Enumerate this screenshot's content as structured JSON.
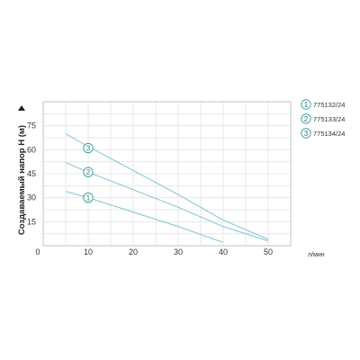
{
  "chart_data": {
    "type": "line",
    "ylabel": "Создаваемый напор H (м)",
    "xunit": "л/мин",
    "xlim": [
      0,
      55
    ],
    "ylim": [
      0,
      90
    ],
    "xticks": [
      0,
      10,
      20,
      30,
      40,
      50
    ],
    "yticks": [
      15,
      30,
      45,
      60,
      75
    ],
    "grid": true,
    "legend_position": "right",
    "line_color": "#8cc9d4",
    "badge_color": "#3aa6a0",
    "series": [
      {
        "name": "775132/24",
        "badge": "1",
        "badge_at": [
          10,
          30
        ],
        "x": [
          5,
          10,
          20,
          30,
          40
        ],
        "y": [
          34,
          30,
          21,
          12,
          2
        ]
      },
      {
        "name": "775133/24",
        "badge": "2",
        "badge_at": [
          10,
          46
        ],
        "x": [
          5,
          10,
          20,
          30,
          40,
          50
        ],
        "y": [
          52,
          46,
          35,
          24,
          12,
          3
        ]
      },
      {
        "name": "775134/24",
        "badge": "3",
        "badge_at": [
          10,
          61
        ],
        "x": [
          5,
          10,
          20,
          30,
          40,
          50
        ],
        "y": [
          70,
          62,
          47,
          32,
          16,
          4
        ]
      }
    ]
  }
}
